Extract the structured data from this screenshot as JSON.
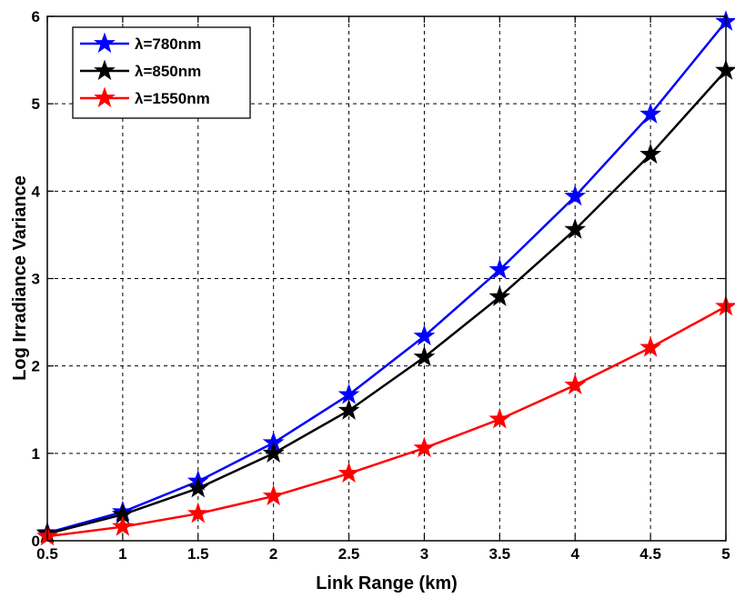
{
  "chart_data": {
    "type": "line",
    "xlabel": "Link Range (km)",
    "ylabel": "Log Irradiance Variance",
    "x": [
      0.5,
      1,
      1.5,
      2,
      2.5,
      3,
      3.5,
      4,
      4.5,
      5
    ],
    "xlim": [
      0.5,
      5
    ],
    "ylim": [
      0,
      6
    ],
    "xticks": [
      "0.5",
      "1",
      "1.5",
      "2",
      "2.5",
      "3",
      "3.5",
      "4",
      "4.5",
      "5"
    ],
    "yticks": [
      "0",
      "1",
      "2",
      "3",
      "4",
      "5",
      "6"
    ],
    "grid": true,
    "legend_position": "top-left",
    "marker": "star",
    "series": [
      {
        "name": "λ=780nm",
        "color": "#0000ff",
        "values": [
          0.09,
          0.33,
          0.68,
          1.12,
          1.67,
          2.34,
          3.1,
          3.94,
          4.88,
          5.94
        ]
      },
      {
        "name": "λ=850nm",
        "color": "#000000",
        "values": [
          0.08,
          0.3,
          0.6,
          1.0,
          1.49,
          2.1,
          2.79,
          3.56,
          4.42,
          5.38
        ]
      },
      {
        "name": "λ=1550nm",
        "color": "#ff0000",
        "values": [
          0.05,
          0.16,
          0.31,
          0.51,
          0.77,
          1.06,
          1.39,
          1.78,
          2.21,
          2.68
        ]
      }
    ]
  }
}
